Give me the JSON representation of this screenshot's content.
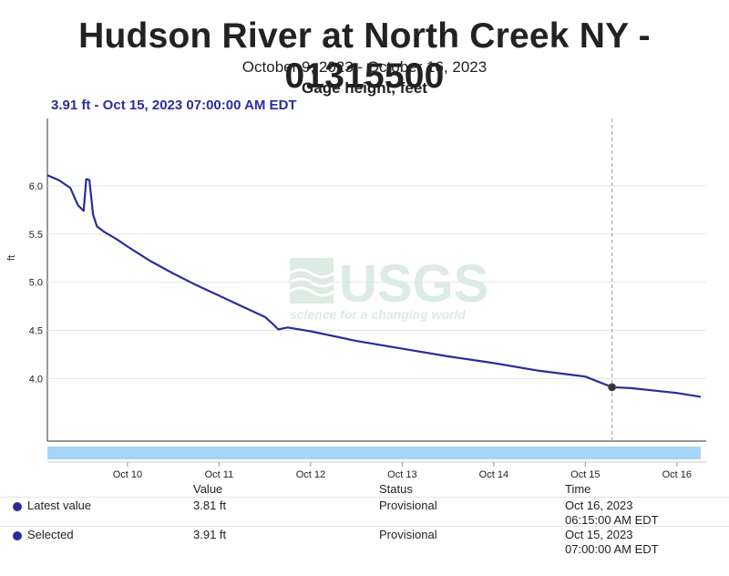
{
  "header": {
    "title": "Hudson River at North Creek NY - 01315500",
    "date_range": "October 9, 2023 - October 16, 2023",
    "parameter": "Gage height, feet",
    "selection_readout": "3.91 ft - Oct 15, 2023 07:00:00 AM EDT"
  },
  "watermark": {
    "logo": "USGS",
    "tagline": "science for a changing world"
  },
  "colors": {
    "series": "#2b2d9b",
    "nav_bar": "#a6d4f7",
    "grid": "#e5e5e5",
    "cursor": "#999999"
  },
  "chart_data": {
    "type": "line",
    "ylabel": "ft",
    "xlabel": "",
    "x_unit": "days",
    "x_range": [
      "Oct 9, 2023 03:00",
      "Oct 16, 2023 06:15"
    ],
    "y_range": [
      3.35,
      6.7
    ],
    "y_ticks": [
      "6.0",
      "5.5",
      "5.0",
      "4.5",
      "4.0"
    ],
    "x_ticks": [
      "Oct 10",
      "Oct 11",
      "Oct 12",
      "Oct 13",
      "Oct 14",
      "Oct 15",
      "Oct 16"
    ],
    "grid": true,
    "series": [
      {
        "x": [
          "Oct 9 03:00",
          "Oct 9 06:00",
          "Oct 9 09:00",
          "Oct 9 11:00",
          "Oct 9 12:30",
          "Oct 9 13:10",
          "Oct 9 14:00",
          "Oct 9 15:00",
          "Oct 9 16:00",
          "Oct 9 18:00",
          "Oct 9 21:00",
          "Oct 10 00:00",
          "Oct 10 06:00",
          "Oct 10 12:00",
          "Oct 10 18:00",
          "Oct 11 00:00",
          "Oct 11 06:00",
          "Oct 11 12:00",
          "Oct 11 14:00",
          "Oct 11 15:30",
          "Oct 11 18:00",
          "Oct 12 00:00",
          "Oct 12 12:00",
          "Oct 13 00:00",
          "Oct 13 12:00",
          "Oct 14 00:00",
          "Oct 14 12:00",
          "Oct 15 00:00",
          "Oct 15 07:00",
          "Oct 15 12:00",
          "Oct 16 00:00",
          "Oct 16 06:15"
        ],
        "y": [
          6.11,
          6.06,
          5.98,
          5.8,
          5.74,
          6.07,
          6.06,
          5.7,
          5.58,
          5.52,
          5.45,
          5.37,
          5.22,
          5.09,
          4.97,
          4.86,
          4.75,
          4.64,
          4.57,
          4.51,
          4.53,
          4.49,
          4.39,
          4.31,
          4.23,
          4.16,
          4.08,
          4.02,
          3.91,
          3.9,
          3.85,
          3.81
        ]
      }
    ],
    "selected_point": {
      "x": "Oct 15 07:00",
      "y": 3.91
    }
  },
  "table": {
    "headers": {
      "value": "Value",
      "status": "Status",
      "time": "Time"
    },
    "rows": [
      {
        "label": "Latest value",
        "value": "3.81 ft",
        "status": "Provisional",
        "date": "Oct 16, 2023",
        "time": "06:15:00 AM EDT"
      },
      {
        "label": "Selected",
        "value": "3.91 ft",
        "status": "Provisional",
        "date": "Oct 15, 2023",
        "time": "07:00:00 AM EDT"
      }
    ]
  }
}
